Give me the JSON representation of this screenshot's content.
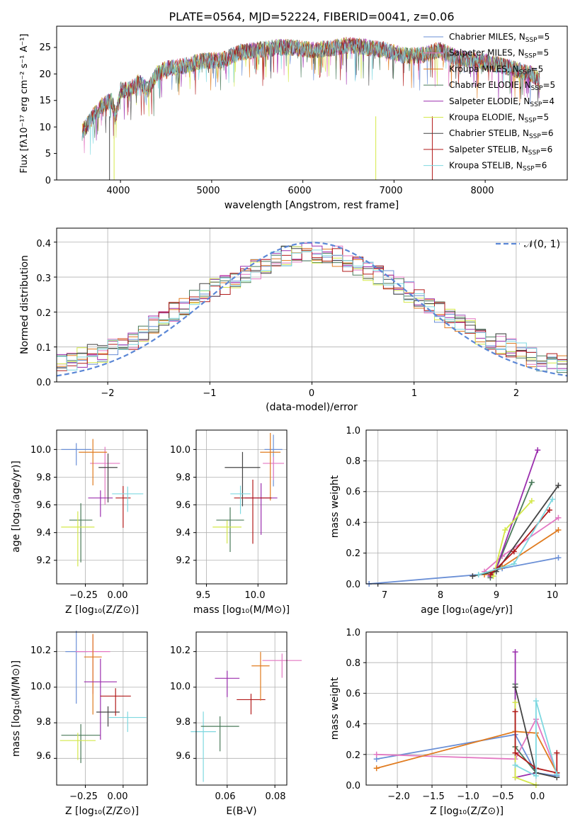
{
  "spectrum": {
    "title": "PLATE=0564, MJD=52224, FIBERID=0041, z=0.06",
    "xlabel": "wavelength [Angstrom, rest frame]",
    "ylabel": "Flux [fλ10⁻¹⁷ erg cm⁻² s⁻¹ A⁻¹]",
    "legend": [
      {
        "label": "Chabrier MILES, N",
        "sub": "SSP",
        "post": "=5",
        "color": "#6a8fd6"
      },
      {
        "label": "Salpeter MILES, N",
        "sub": "SSP",
        "post": "=5",
        "color": "#e377c2"
      },
      {
        "label": "Kroupa MILES, N",
        "sub": "SSP",
        "post": "=5",
        "color": "#e07b1f"
      },
      {
        "label": "Chabrier ELODIE, N",
        "sub": "SSP",
        "post": "=5",
        "color": "#4a7a5a"
      },
      {
        "label": "Salpeter ELODIE, N",
        "sub": "SSP",
        "post": "=4",
        "color": "#9b2fae"
      },
      {
        "label": "Kroupa ELODIE, N",
        "sub": "SSP",
        "post": "=5",
        "color": "#d4e84a"
      },
      {
        "label": "Chabrier STELIB, N",
        "sub": "SSP",
        "post": "=6",
        "color": "#444444"
      },
      {
        "label": "Salpeter STELIB, N",
        "sub": "SSP",
        "post": "=6",
        "color": "#b21b1b"
      },
      {
        "label": "Kroupa STELIB, N",
        "sub": "SSP",
        "post": "=6",
        "color": "#7fd8e0"
      }
    ],
    "xticks": [
      "4000",
      "5000",
      "6000",
      "7000",
      "8000"
    ],
    "yticks": [
      "0",
      "5",
      "10",
      "15",
      "20",
      "25"
    ]
  },
  "residuals": {
    "xlabel": "(data-model)/error",
    "ylabel": "Normed distribution",
    "legend_label": "𝒩(0, 1)",
    "xticks": [
      "−2",
      "−1",
      "0",
      "1",
      "2"
    ],
    "yticks": [
      "0.0",
      "0.1",
      "0.2",
      "0.3",
      "0.4"
    ]
  },
  "panel_age_z": {
    "xlabel": "Z [log₁₀(Z/Z⊙)]",
    "ylabel": "age  [log₁₀(age/yr)]",
    "xticks": [
      "−0.25",
      "0.00"
    ],
    "yticks": [
      "9.2",
      "9.4",
      "9.6",
      "9.8",
      "10.0"
    ]
  },
  "panel_age_mass": {
    "xlabel": "mass [log₁₀(M/M⊙)]",
    "xticks": [
      "9.5",
      "10.0"
    ],
    "yticks": [
      "9.2",
      "9.4",
      "9.6",
      "9.8",
      "10.0"
    ]
  },
  "panel_mw_age": {
    "xlabel": "age  [log₁₀(age/yr)]",
    "ylabel": "mass weight",
    "xticks": [
      "7",
      "8",
      "9",
      "10"
    ],
    "yticks": [
      "0.0",
      "0.2",
      "0.4",
      "0.6",
      "0.8",
      "1.0"
    ]
  },
  "panel_mass_z": {
    "xlabel": "Z [log₁₀(Z/Z⊙)]",
    "ylabel": "mass [log₁₀(M/M⊙)]",
    "xticks": [
      "−0.25",
      "0.00"
    ],
    "yticks": [
      "9.6",
      "9.8",
      "10.0",
      "10.2"
    ]
  },
  "panel_mass_ebv": {
    "xlabel": "E(B-V)",
    "xticks": [
      "0.06",
      "0.08"
    ],
    "yticks": [
      "9.6",
      "9.8",
      "10.0",
      "10.2"
    ]
  },
  "panel_mw_z": {
    "xlabel": "Z [log₁₀(Z/Z⊙)]",
    "ylabel": "mass weight",
    "xticks": [
      "−2.0",
      "−1.5",
      "−1.0",
      "−0.5",
      "0.0"
    ],
    "yticks": [
      "0.0",
      "0.2",
      "0.4",
      "0.6",
      "0.8",
      "1.0"
    ]
  },
  "chart_data": [
    {
      "type": "line",
      "title": "PLATE=0564, MJD=52224, FIBERID=0041, z=0.06",
      "xlabel": "wavelength [Angstrom, rest frame]",
      "ylabel": "Flux",
      "xlim": [
        3300,
        8900
      ],
      "ylim": [
        0,
        29
      ],
      "x": [
        3580,
        3700,
        3800,
        3900,
        3950,
        4000,
        4100,
        4200,
        4300,
        4400,
        4500,
        4700,
        4900,
        5100,
        5300,
        5500,
        5700,
        5900,
        6100,
        6300,
        6500,
        6700,
        6900,
        7100,
        7300,
        7500,
        7700,
        7900,
        8100,
        8300,
        8500,
        8600
      ],
      "y": [
        9,
        12,
        14,
        15,
        12,
        17,
        17,
        18.5,
        17,
        20,
        21,
        21.5,
        22.5,
        22.5,
        24,
        24.5,
        25,
        25,
        24.5,
        24.8,
        25.5,
        25,
        24.5,
        23.5,
        23.5,
        24.5,
        23,
        22.5,
        22,
        21,
        20,
        19
      ],
      "grid": false,
      "legend_position": "top-right"
    },
    {
      "type": "line",
      "xlabel": "(data-model)/error",
      "ylabel": "Normed distribution",
      "xlim": [
        -2.5,
        2.5
      ],
      "ylim": [
        0,
        0.44
      ],
      "series": [
        {
          "name": "N(0, 1)",
          "style": "dashed"
        }
      ],
      "histogram_envelope": {
        "x": [
          -2.5,
          -2.25,
          -2.0,
          -1.75,
          -1.5,
          -1.25,
          -1.0,
          -0.75,
          -0.5,
          -0.25,
          0.0,
          0.25,
          0.5,
          0.75,
          1.0,
          1.25,
          1.5,
          1.75,
          2.0,
          2.25,
          2.5
        ],
        "y": [
          0.045,
          0.07,
          0.09,
          0.12,
          0.17,
          0.22,
          0.26,
          0.29,
          0.33,
          0.36,
          0.37,
          0.36,
          0.32,
          0.29,
          0.25,
          0.2,
          0.16,
          0.12,
          0.09,
          0.06,
          0.045
        ]
      },
      "grid": true,
      "legend_position": "top-right"
    },
    {
      "type": "scatter",
      "xlabel": "Z [log10(Z/Zsun)]",
      "ylabel": "age [log10(age/yr)]",
      "xlim": [
        -0.44,
        0.16
      ],
      "ylim": [
        9.03,
        10.14
      ],
      "points": [
        {
          "x": -0.31,
          "y": 10.0,
          "color": "#6a8fd6"
        },
        {
          "x": -0.12,
          "y": 9.9,
          "color": "#e377c2"
        },
        {
          "x": -0.2,
          "y": 9.98,
          "color": "#e07b1f"
        },
        {
          "x": -0.28,
          "y": 9.49,
          "color": "#4a7a5a"
        },
        {
          "x": -0.15,
          "y": 9.65,
          "color": "#9b2fae"
        },
        {
          "x": -0.3,
          "y": 9.44,
          "color": "#d4e84a"
        },
        {
          "x": -0.1,
          "y": 9.87,
          "color": "#444444"
        },
        {
          "x": 0.0,
          "y": 9.65,
          "color": "#b21b1b"
        },
        {
          "x": 0.03,
          "y": 9.68,
          "color": "#7fd8e0"
        }
      ],
      "grid": true
    },
    {
      "type": "scatter",
      "xlabel": "mass [log10(M/Msun)]",
      "xlim": [
        9.4,
        10.28
      ],
      "ylim": [
        9.03,
        10.14
      ],
      "points": [
        {
          "x": 10.15,
          "y": 10.0,
          "color": "#6a8fd6"
        },
        {
          "x": 10.15,
          "y": 9.9,
          "color": "#e377c2"
        },
        {
          "x": 10.12,
          "y": 9.98,
          "color": "#e07b1f"
        },
        {
          "x": 9.73,
          "y": 9.49,
          "color": "#4a7a5a"
        },
        {
          "x": 10.03,
          "y": 9.65,
          "color": "#9b2fae"
        },
        {
          "x": 9.7,
          "y": 9.44,
          "color": "#d4e84a"
        },
        {
          "x": 9.85,
          "y": 9.87,
          "color": "#444444"
        },
        {
          "x": 9.95,
          "y": 9.65,
          "color": "#b21b1b"
        },
        {
          "x": 9.83,
          "y": 9.68,
          "color": "#7fd8e0"
        }
      ],
      "grid": true
    },
    {
      "type": "line",
      "xlabel": "age [log10(age/yr)]",
      "ylabel": "mass weight",
      "xlim": [
        6.8,
        10.2
      ],
      "ylim": [
        0,
        1
      ],
      "series": [
        {
          "x": [
            6.85,
            8.7,
            9.1,
            10.05
          ],
          "y": [
            0.0,
            0.06,
            0.1,
            0.17
          ],
          "color": "#6a8fd6"
        },
        {
          "x": [
            8.8,
            9.1,
            10.05
          ],
          "y": [
            0.08,
            0.18,
            0.43
          ],
          "color": "#e377c2"
        },
        {
          "x": [
            8.8,
            9.1,
            10.05
          ],
          "y": [
            0.06,
            0.11,
            0.35
          ],
          "color": "#e07b1f"
        },
        {
          "x": [
            8.9,
            9.0,
            9.6
          ],
          "y": [
            0.04,
            0.1,
            0.66
          ],
          "color": "#4a7a5a"
        },
        {
          "x": [
            8.9,
            9.0,
            9.7
          ],
          "y": [
            0.05,
            0.1,
            0.87
          ],
          "color": "#9b2fae"
        },
        {
          "x": [
            8.95,
            9.15,
            9.6
          ],
          "y": [
            0.05,
            0.35,
            0.54
          ],
          "color": "#d4e84a"
        },
        {
          "x": [
            8.6,
            9.0,
            10.05
          ],
          "y": [
            0.05,
            0.08,
            0.64
          ],
          "color": "#444444"
        },
        {
          "x": [
            8.9,
            9.3,
            9.9
          ],
          "y": [
            0.06,
            0.21,
            0.48
          ],
          "color": "#b21b1b"
        },
        {
          "x": [
            8.7,
            9.3,
            9.95
          ],
          "y": [
            0.06,
            0.13,
            0.55
          ],
          "color": "#7fd8e0"
        }
      ],
      "grid": true
    },
    {
      "type": "scatter",
      "xlabel": "Z [log10(Z/Zsun)]",
      "ylabel": "mass [log10(M/Msun)]",
      "xlim": [
        -0.44,
        0.16
      ],
      "ylim": [
        9.45,
        10.31
      ],
      "points": [
        {
          "x": -0.31,
          "y": 10.2,
          "color": "#6a8fd6"
        },
        {
          "x": -0.2,
          "y": 10.2,
          "color": "#e377c2"
        },
        {
          "x": -0.2,
          "y": 10.17,
          "color": "#e07b1f"
        },
        {
          "x": -0.28,
          "y": 9.73,
          "color": "#4a7a5a"
        },
        {
          "x": -0.15,
          "y": 10.03,
          "color": "#9b2fae"
        },
        {
          "x": -0.3,
          "y": 9.7,
          "color": "#d4e84a"
        },
        {
          "x": -0.1,
          "y": 9.86,
          "color": "#444444"
        },
        {
          "x": -0.05,
          "y": 9.95,
          "color": "#b21b1b"
        },
        {
          "x": 0.03,
          "y": 9.83,
          "color": "#7fd8e0"
        }
      ],
      "grid": true
    },
    {
      "type": "scatter",
      "xlabel": "E(B-V)",
      "xlim": [
        0.047,
        0.085
      ],
      "ylim": [
        9.45,
        10.31
      ],
      "points": [
        {
          "x": 0.05,
          "y": 9.75,
          "color": "#7fd8e0"
        },
        {
          "x": 0.057,
          "y": 9.78,
          "color": "#4a7a5a"
        },
        {
          "x": 0.06,
          "y": 10.05,
          "color": "#9b2fae"
        },
        {
          "x": 0.07,
          "y": 9.93,
          "color": "#b21b1b"
        },
        {
          "x": 0.074,
          "y": 10.12,
          "color": "#e07b1f"
        },
        {
          "x": 0.083,
          "y": 10.15,
          "color": "#e377c2"
        }
      ],
      "grid": true
    },
    {
      "type": "line",
      "xlabel": "Z [log10(Z/Zsun)]",
      "ylabel": "mass weight",
      "xlim": [
        -2.45,
        0.45
      ],
      "ylim": [
        0,
        1
      ],
      "series": [
        {
          "x": [
            -2.3,
            -0.3,
            0.0,
            0.3
          ],
          "y": [
            0.17,
            0.33,
            0.08,
            0.06
          ],
          "color": "#6a8fd6"
        },
        {
          "x": [
            -2.3,
            -0.3,
            0.0,
            0.3
          ],
          "y": [
            0.2,
            0.17,
            0.43,
            0.08
          ],
          "color": "#e377c2"
        },
        {
          "x": [
            -2.3,
            -0.3,
            0.0,
            0.3
          ],
          "y": [
            0.11,
            0.35,
            0.34,
            0.08
          ],
          "color": "#e07b1f"
        },
        {
          "x": [
            -0.3,
            -0.3,
            0.0
          ],
          "y": [
            0.66,
            0.25,
            0.08
          ],
          "color": "#4a7a5a"
        },
        {
          "x": [
            -0.3,
            -0.3,
            0.0
          ],
          "y": [
            0.87,
            0.05,
            0.08
          ],
          "color": "#9b2fae"
        },
        {
          "x": [
            -0.3,
            -0.3,
            0.0
          ],
          "y": [
            0.54,
            0.05,
            0.0
          ],
          "color": "#d4e84a"
        },
        {
          "x": [
            -0.3,
            0.0,
            0.3
          ],
          "y": [
            0.64,
            0.08,
            0.05
          ],
          "color": "#444444"
        },
        {
          "x": [
            -0.3,
            -0.3,
            0.0,
            0.3,
            0.3
          ],
          "y": [
            0.48,
            0.21,
            0.11,
            0.08,
            0.21
          ],
          "color": "#b21b1b"
        },
        {
          "x": [
            -0.3,
            0.0,
            0.0,
            0.3
          ],
          "y": [
            0.13,
            0.06,
            0.55,
            0.07
          ],
          "color": "#7fd8e0"
        }
      ],
      "grid": true
    }
  ]
}
